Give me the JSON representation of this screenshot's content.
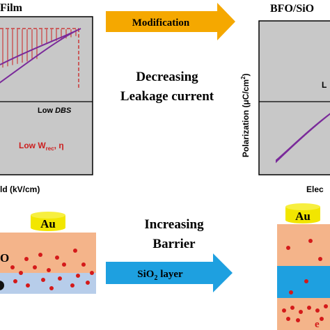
{
  "left_panel": {
    "title_fragment": "Film",
    "x_axis_fragment": "ld (kV/cm)",
    "low_dbs_prefix": "Low ",
    "low_dbs_italic": "DBS",
    "low_w_prefix": "Low W",
    "low_w_sub": "rec",
    "low_w_suffix": ", η",
    "colors": {
      "red": "#cc1f1f",
      "purple": "#7a2a9a",
      "panel": "#c8c8c8"
    }
  },
  "right_panel": {
    "title_fragment": "BFO/SiO",
    "y_axis_prefix": "Polarization (μC/cm",
    "y_axis_sup": "2",
    "y_axis_suffix": ")",
    "x_axis_fragment": "Elec",
    "low_fragment": "L"
  },
  "top_arrow": {
    "label": "Modification",
    "color": "#f5a800"
  },
  "center_text": {
    "line1": "Decreasing",
    "line2": "Leakage current",
    "line3": "Increasing",
    "line4": "Barrier"
  },
  "bottom_arrow": {
    "label_prefix": "SiO",
    "label_sub": "2",
    "label_suffix": " layer",
    "color": "#1ea0e0"
  },
  "electrode_label": "Au",
  "left_stack": {
    "o_fragment": "O"
  },
  "right_stack": {
    "e_fragment": "e"
  },
  "colors": {
    "gold": "#f2e600",
    "orange_layer": "#f4b48a",
    "blue_layer": "#b7cdea",
    "sio2_blue": "#1ea0e0",
    "dot_red": "#d41a1a"
  }
}
